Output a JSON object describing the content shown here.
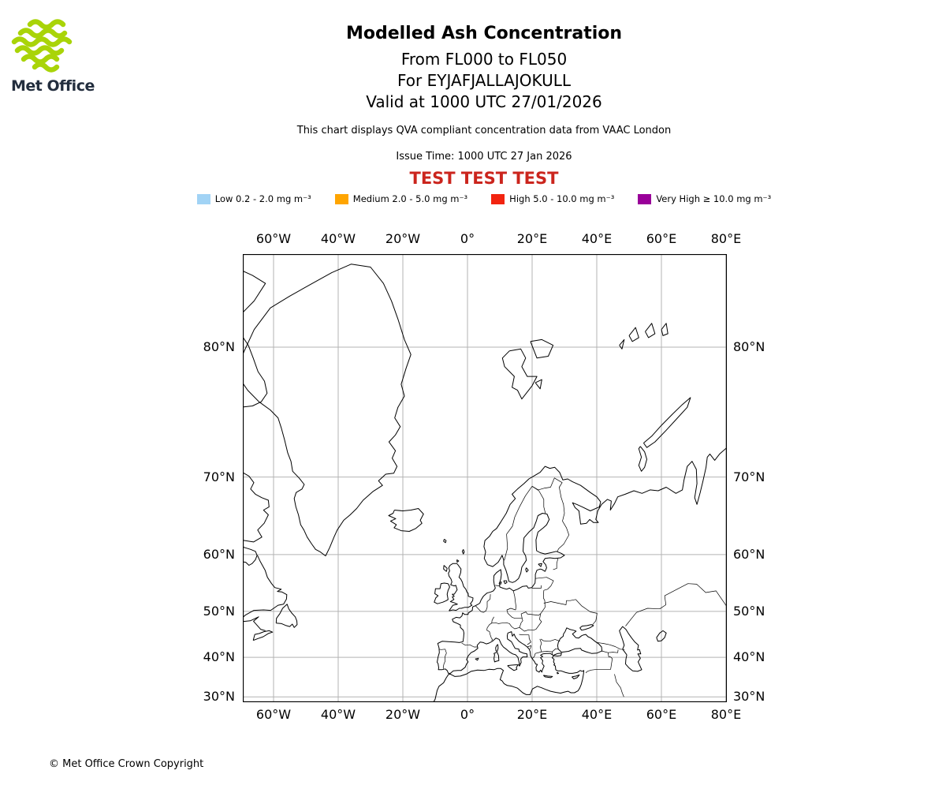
{
  "logo": {
    "name": "Met Office",
    "green": "#a9d408",
    "text_color": "#232e3e"
  },
  "header": {
    "title": "Modelled Ash Concentration",
    "subtitle_lines": [
      "From FL000 to FL050",
      "For EYJAFJALLAJOKULL",
      "Valid at 1000 UTC 27/01/2026"
    ],
    "compliance_note": "This chart displays QVA compliant concentration data from VAAC London",
    "issue_time": "Issue Time: 1000 UTC 27 Jan 2026",
    "test_banner": "TEST TEST TEST",
    "test_banner_color": "#cb251d"
  },
  "legend": {
    "items": [
      {
        "label": "Low 0.2 - 2.0 mg m⁻³",
        "color": "#a1d3f5"
      },
      {
        "label": "Medium 2.0 - 5.0 mg m⁻³",
        "color": "#ffa500"
      },
      {
        "label": "High 5.0 - 10.0 mg m⁻³",
        "color": "#f22410"
      },
      {
        "label": "Very High ≥ 10.0 mg m⁻³",
        "color": "#990099"
      }
    ]
  },
  "map": {
    "projection": "mercator",
    "extent": {
      "lon_min": -69.5,
      "lon_max": 80.2,
      "lat_min": 28.6,
      "lat_max": 83.9
    },
    "lon_ticks": [
      {
        "value": -60,
        "label": "60°W"
      },
      {
        "value": -40,
        "label": "40°W"
      },
      {
        "value": -20,
        "label": "20°W"
      },
      {
        "value": 0,
        "label": "0°"
      },
      {
        "value": 20,
        "label": "20°E"
      },
      {
        "value": 40,
        "label": "40°E"
      },
      {
        "value": 60,
        "label": "60°E"
      },
      {
        "value": 80,
        "label": "80°E"
      }
    ],
    "lat_ticks": [
      {
        "value": 80,
        "label": "80°N"
      },
      {
        "value": 70,
        "label": "70°N"
      },
      {
        "value": 60,
        "label": "60°N"
      },
      {
        "value": 50,
        "label": "50°N"
      },
      {
        "value": 40,
        "label": "40°N"
      },
      {
        "value": 30,
        "label": "30°N"
      }
    ],
    "gridline_color": "#b3b3b3",
    "coast_color": "#000000"
  },
  "footer": {
    "copyright": "© Met Office Crown Copyright"
  }
}
